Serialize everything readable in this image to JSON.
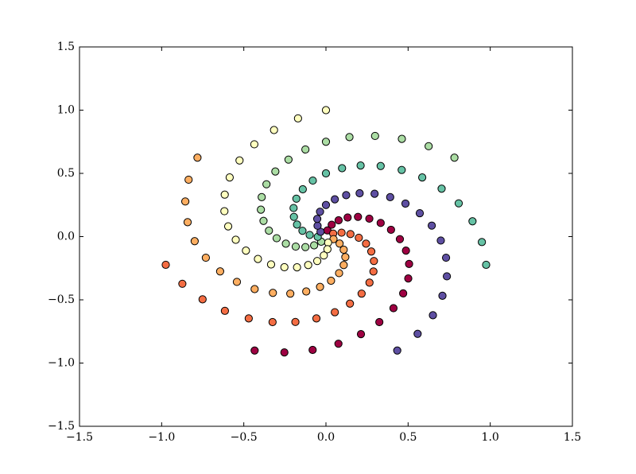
{
  "chart_data": {
    "type": "scatter",
    "xlim": [
      -1.5,
      1.5
    ],
    "ylim": [
      -1.5,
      1.5
    ],
    "xticks": [
      {
        "value": -1.5,
        "label": "−1.5"
      },
      {
        "value": -1,
        "label": "−1.0"
      },
      {
        "value": -0.5,
        "label": "−0.5"
      },
      {
        "value": 0,
        "label": "0.0"
      },
      0.5,
      {
        "value": 1,
        "label": "1.0"
      },
      1.5
    ],
    "yticks": [
      {
        "value": -1.5,
        "label": "−1.5"
      },
      {
        "value": -1,
        "label": "−1.0"
      },
      {
        "value": -0.5,
        "label": "−0.5"
      },
      {
        "value": 0,
        "label": "0.0"
      },
      0.5,
      {
        "value": 1,
        "label": "1.0"
      },
      1.5
    ],
    "grid": false,
    "series": [
      {
        "color": "#9e0142",
        "x": [
          0.009,
          0.035,
          0.077,
          0.132,
          0.195,
          0.264,
          0.333,
          0.396,
          0.45,
          0.487,
          0.506,
          0.501,
          0.47,
          0.411,
          0.325,
          0.213,
          0.076,
          -0.081,
          -0.253,
          -0.434
        ],
        "values": [
          0.049,
          0.094,
          0.129,
          0.151,
          0.156,
          0.142,
          0.108,
          0.054,
          -0.02,
          -0.111,
          -0.216,
          -0.331,
          -0.449,
          -0.566,
          -0.676,
          -0.771,
          -0.847,
          -0.896,
          -0.916,
          -0.901
        ]
      },
      {
        "color": "#f46d43",
        "x": [
          0.044,
          0.095,
          0.149,
          0.2,
          0.244,
          0.276,
          0.292,
          0.289,
          0.265,
          0.217,
          0.146,
          0.054,
          -0.058,
          -0.186,
          -0.325,
          -0.47,
          -0.615,
          -0.751,
          -0.874,
          -0.975
        ],
        "values": [
          0.024,
          0.031,
          0.02,
          -0.009,
          -0.056,
          -0.118,
          -0.193,
          -0.276,
          -0.364,
          -0.451,
          -0.53,
          -0.598,
          -0.647,
          -0.675,
          -0.676,
          -0.647,
          -0.587,
          -0.496,
          -0.373,
          -0.223
        ]
      },
      {
        "color": "#fdae61",
        "x": [
          0.046,
          0.083,
          0.108,
          0.118,
          0.108,
          0.08,
          0.031,
          -0.036,
          -0.12,
          -0.217,
          -0.323,
          -0.434,
          -0.542,
          -0.644,
          -0.731,
          -0.799,
          -0.842,
          -0.856,
          -0.836,
          -0.782
        ],
        "values": [
          -0.02,
          -0.055,
          -0.104,
          -0.162,
          -0.225,
          -0.289,
          -0.349,
          -0.398,
          -0.434,
          -0.451,
          -0.445,
          -0.415,
          -0.358,
          -0.275,
          -0.167,
          -0.036,
          0.114,
          0.278,
          0.45,
          0.624
        ]
      },
      {
        "color": "#ffffbf",
        "x": [
          0.013,
          0.009,
          -0.013,
          -0.053,
          -0.108,
          -0.176,
          -0.253,
          -0.334,
          -0.414,
          -0.487,
          -0.549,
          -0.595,
          -0.618,
          -0.616,
          -0.586,
          -0.526,
          -0.436,
          -0.316,
          -0.17,
          0
        ],
        "values": [
          -0.048,
          -0.1,
          -0.149,
          -0.193,
          -0.225,
          -0.243,
          -0.242,
          -0.22,
          -0.177,
          -0.111,
          -0.025,
          0.081,
          0.201,
          0.332,
          0.468,
          0.602,
          0.73,
          0.843,
          0.935,
          1
        ]
      },
      {
        "color": "#abdda4",
        "x": [
          -0.029,
          -0.072,
          -0.125,
          -0.184,
          -0.244,
          -0.3,
          -0.347,
          -0.38,
          -0.396,
          -0.391,
          -0.362,
          -0.308,
          -0.228,
          -0.125,
          0,
          0.143,
          0.299,
          0.462,
          0.625,
          0.782
        ],
        "values": [
          -0.04,
          -0.069,
          -0.083,
          -0.079,
          -0.056,
          -0.013,
          0.047,
          0.124,
          0.213,
          0.312,
          0.414,
          0.515,
          0.609,
          0.689,
          0.75,
          0.787,
          0.796,
          0.773,
          0.715,
          0.624
        ]
      },
      {
        "color": "#66c2a5",
        "x": [
          -0.05,
          -0.099,
          -0.143,
          -0.176,
          -0.195,
          -0.197,
          -0.18,
          -0.141,
          -0.08,
          0,
          0.098,
          0.211,
          0.333,
          0.461,
          0.586,
          0.704,
          0.808,
          0.892,
          0.949,
          0.975
        ],
        "values": [
          -0.002,
          0.013,
          0.046,
          0.095,
          0.156,
          0.226,
          0.3,
          0.374,
          0.443,
          0.5,
          0.541,
          0.562,
          0.558,
          0.527,
          0.468,
          0.379,
          0.263,
          0.121,
          -0.043,
          -0.223
        ]
      },
      {
        "color": "#5e4fa2",
        "x": [
          -0.033,
          -0.051,
          -0.053,
          -0.036,
          0,
          0.054,
          0.123,
          0.205,
          0.296,
          0.391,
          0.484,
          0.571,
          0.644,
          0.699,
          0.731,
          0.736,
          0.709,
          0.651,
          0.558,
          0.434
        ],
        "values": [
          0.038,
          0.086,
          0.14,
          0.197,
          0.25,
          0.295,
          0.328,
          0.343,
          0.339,
          0.312,
          0.261,
          0.185,
          0.087,
          -0.031,
          -0.167,
          -0.314,
          -0.468,
          -0.622,
          -0.769,
          -0.901
        ]
      }
    ]
  }
}
